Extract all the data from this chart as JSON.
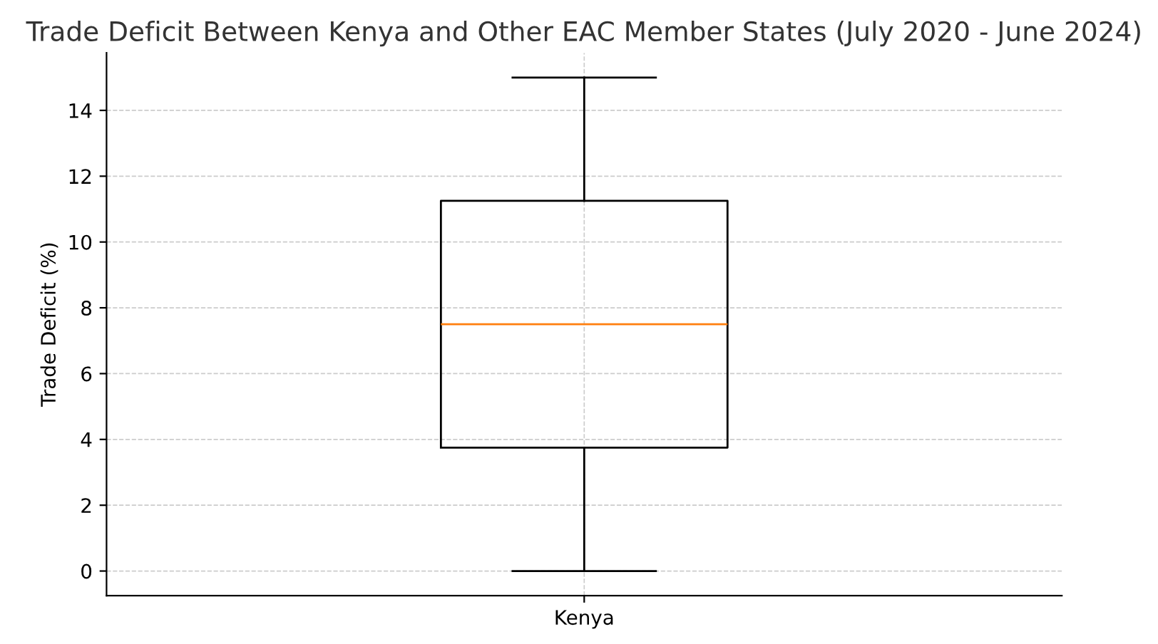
{
  "chart_data": {
    "type": "box",
    "title": "Trade Deficit Between Kenya and Other EAC Member States (July 2020 - June 2024)",
    "ylabel": "Trade Deficit (%)",
    "categories": [
      "Kenya"
    ],
    "boxes": [
      {
        "low": 0,
        "q1": 3.75,
        "median": 7.5,
        "q3": 11.25,
        "high": 15
      }
    ],
    "color": "#000000",
    "ylim": [
      -0.75,
      15.75
    ],
    "yticks": [
      0,
      2,
      4,
      6,
      8,
      10,
      12,
      14
    ],
    "grid": true
  }
}
